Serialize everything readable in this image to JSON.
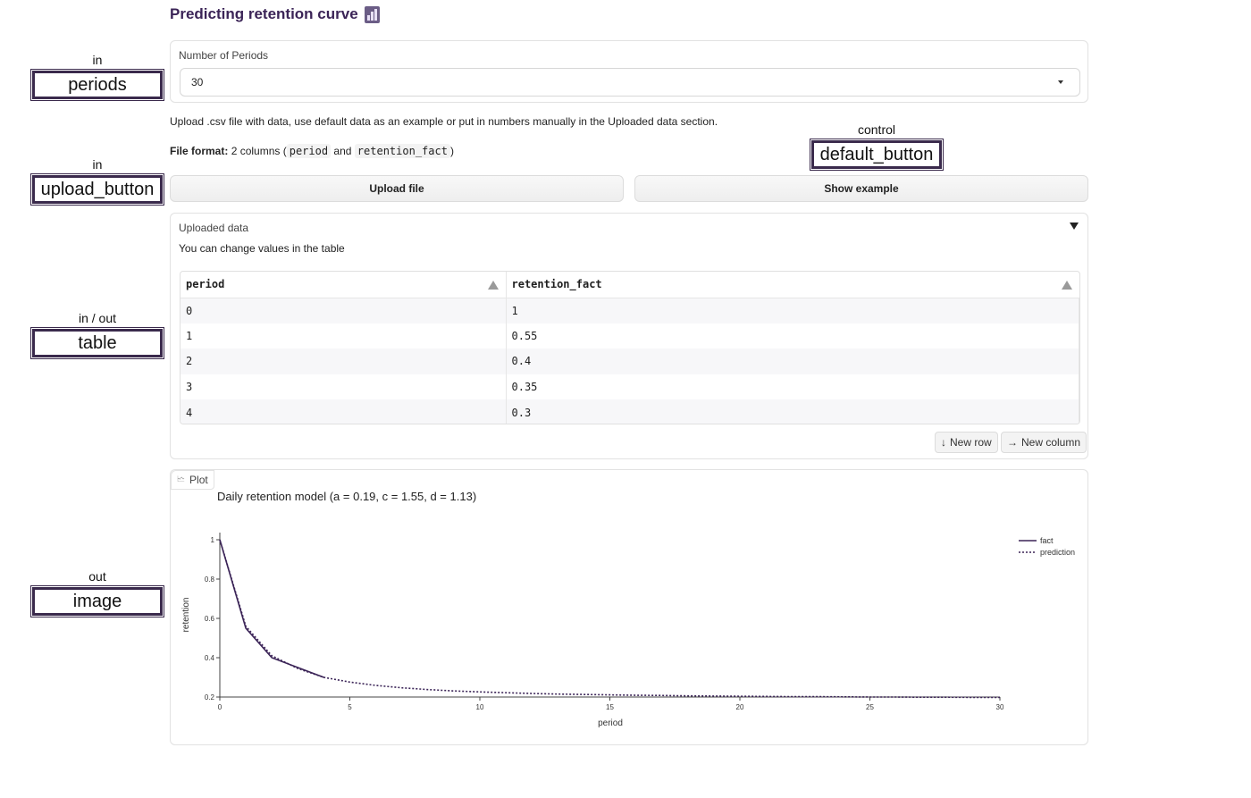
{
  "app": {
    "title": "Predicting retention curve",
    "title_icon": "bar-chart-emoji"
  },
  "annotations": [
    {
      "caption": "in",
      "label": "periods"
    },
    {
      "caption": "in",
      "label": "upload_button"
    },
    {
      "caption": "in / out",
      "label": "table"
    },
    {
      "caption": "out",
      "label": "image"
    }
  ],
  "control_annotation": {
    "caption": "control",
    "label": "default_button"
  },
  "periods": {
    "label": "Number of Periods",
    "value": "30"
  },
  "instructions": {
    "upload_text": "Upload .csv file with data, use default data as an example or put in numbers manually in the Uploaded data section.",
    "format_label": "File format:",
    "format_prefix": "2 columns (",
    "col1": "period",
    "and_text": "and",
    "col2": "retention_fact",
    "format_suffix": ")"
  },
  "buttons": {
    "upload": "Upload file",
    "example": "Show example",
    "new_row": "New row",
    "new_column": "New column"
  },
  "uploaded": {
    "title": "Uploaded data",
    "hint": "You can change values in the table",
    "columns": [
      "period",
      "retention_fact"
    ],
    "rows": [
      [
        "0",
        "1"
      ],
      [
        "1",
        "0.55"
      ],
      [
        "2",
        "0.4"
      ],
      [
        "3",
        "0.35"
      ],
      [
        "4",
        "0.3"
      ]
    ]
  },
  "plot": {
    "tab_label": "Plot"
  },
  "chart_data": {
    "type": "line",
    "title": "Daily retention model (a = 0.19, c = 1.55, d = 1.13)",
    "xlabel": "period",
    "ylabel": "retention",
    "xlim": [
      0,
      30
    ],
    "ylim": [
      0.2,
      1
    ],
    "x_ticks": [
      0,
      5,
      10,
      15,
      20,
      25,
      30
    ],
    "y_ticks": [
      0.2,
      0.4,
      0.6,
      0.8,
      1
    ],
    "legend_position": "top-right",
    "series": [
      {
        "name": "fact",
        "style": "solid",
        "x": [
          0,
          1,
          2,
          3,
          4
        ],
        "values": [
          1,
          0.55,
          0.4,
          0.35,
          0.3
        ]
      },
      {
        "name": "prediction",
        "style": "dotted",
        "x": [
          0,
          1,
          2,
          3,
          4,
          5,
          6,
          7,
          8,
          9,
          10,
          11,
          12,
          13,
          14,
          15,
          16,
          17,
          18,
          19,
          20,
          21,
          22,
          23,
          24,
          25,
          26,
          27,
          28,
          29,
          30
        ],
        "values": [
          1,
          0.56,
          0.41,
          0.345,
          0.3,
          0.276,
          0.259,
          0.247,
          0.238,
          0.231,
          0.226,
          0.222,
          0.218,
          0.215,
          0.213,
          0.211,
          0.209,
          0.208,
          0.206,
          0.205,
          0.204,
          0.203,
          0.202,
          0.202,
          0.201,
          0.2,
          0.2,
          0.199,
          0.199,
          0.198,
          0.198
        ]
      }
    ],
    "line_color": "#3b2457"
  }
}
